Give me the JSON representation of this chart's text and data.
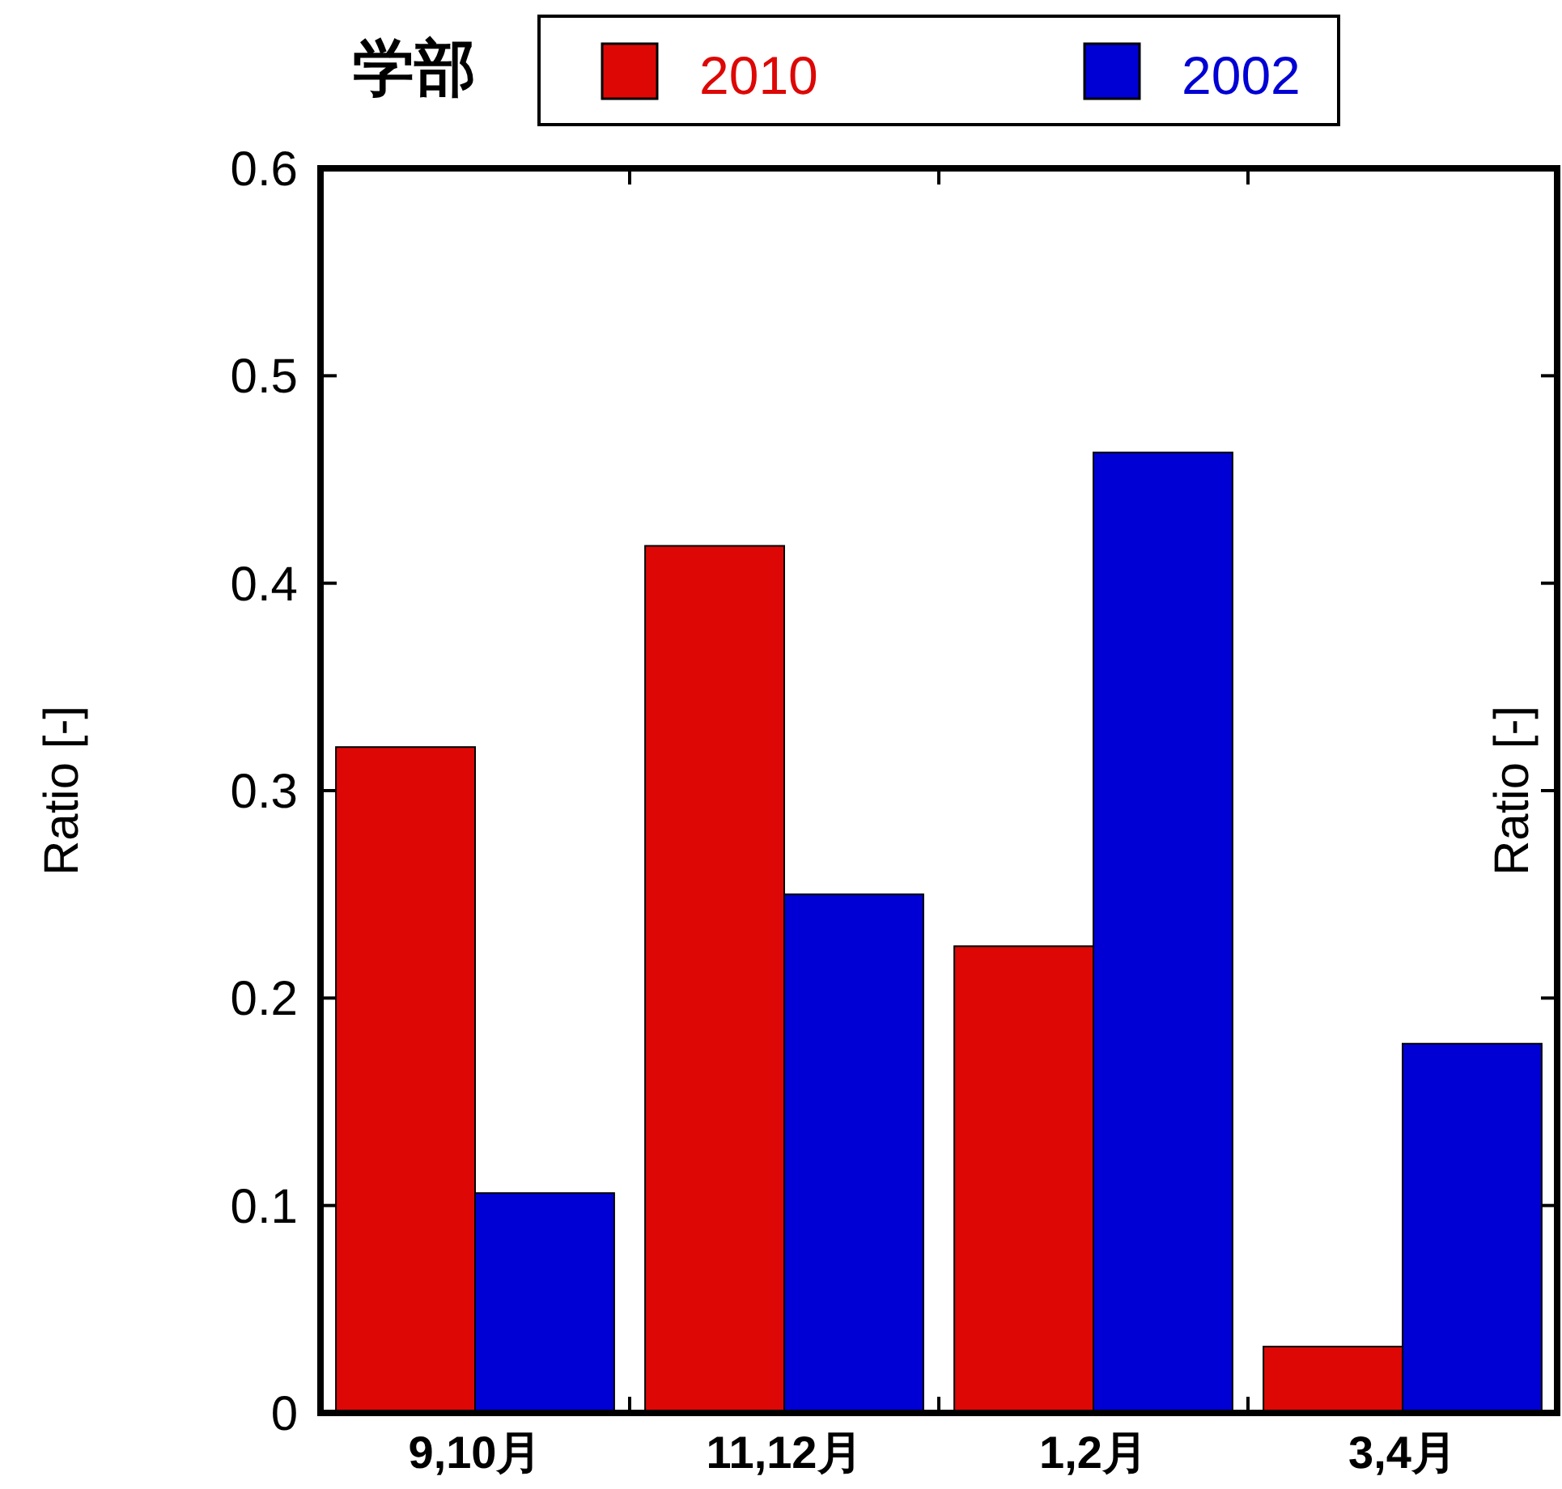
{
  "chart_data": {
    "type": "bar",
    "legend_title": "学部",
    "ylabel": "Ratio [-]",
    "y2label": "Ratio [-]",
    "categories": [
      "9,10月",
      "11,12月",
      "1,2月",
      "3,4月"
    ],
    "series": [
      {
        "name": "2010",
        "color": "#dd0806",
        "values": [
          0.321,
          0.418,
          0.225,
          0.032
        ]
      },
      {
        "name": "2002",
        "color": "#0000d4",
        "values": [
          0.106,
          0.25,
          0.463,
          0.178
        ]
      }
    ],
    "ylim": [
      0,
      0.6
    ],
    "yticks": [
      0,
      0.1,
      0.2,
      0.3,
      0.4,
      0.5,
      0.6
    ],
    "tick_labels": "xy",
    "legend": "top",
    "grid": false
  }
}
